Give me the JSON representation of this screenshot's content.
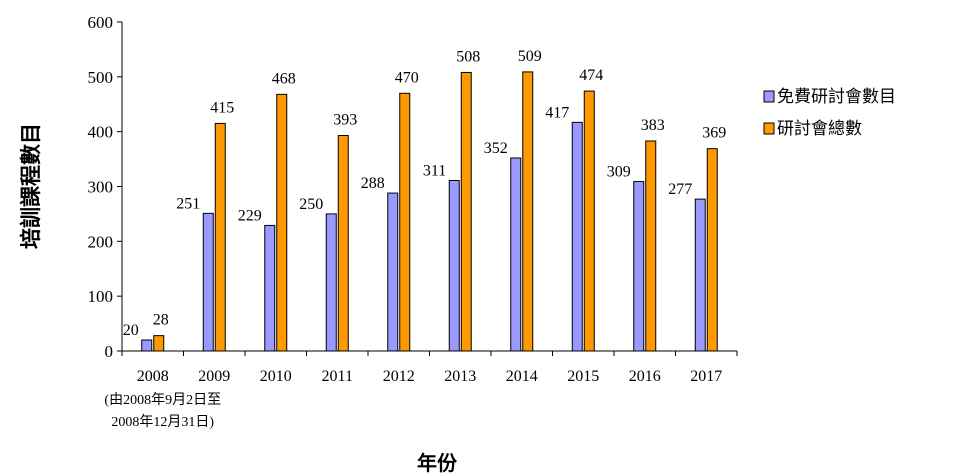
{
  "chart_data": {
    "type": "bar",
    "title": "",
    "xlabel": "年份",
    "ylabel": "培訓課程數目",
    "ylim": [
      0,
      600
    ],
    "yticks": [
      0,
      100,
      200,
      300,
      400,
      500,
      600
    ],
    "categories": [
      "2008",
      "2009",
      "2010",
      "2011",
      "2012",
      "2013",
      "2014",
      "2015",
      "2016",
      "2017"
    ],
    "category_note": [
      "(由2008年9月2日至",
      "2008年12月31日)"
    ],
    "series": [
      {
        "name": "免費研討會數目",
        "color": "#9999ff",
        "values": [
          20,
          251,
          229,
          250,
          288,
          311,
          352,
          417,
          309,
          277
        ]
      },
      {
        "name": "研討會總數",
        "color": "#ff9900",
        "values": [
          28,
          415,
          468,
          393,
          470,
          508,
          509,
          474,
          383,
          369
        ]
      }
    ],
    "legend_position": "right",
    "grid": false,
    "data_labels": true
  }
}
